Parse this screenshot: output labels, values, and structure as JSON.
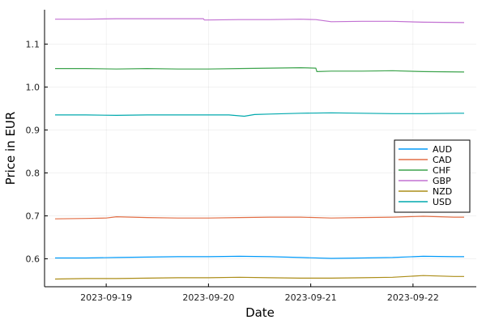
{
  "chart_data": {
    "type": "line",
    "title": "",
    "xlabel": "Date",
    "ylabel": "Price in EUR",
    "x_ticks": [
      "2023-09-19",
      "2023-09-20",
      "2023-09-21",
      "2023-09-22"
    ],
    "x_range": [
      0,
      4
    ],
    "x_tick_positions": [
      0.5,
      1.5,
      2.5,
      3.5
    ],
    "ylim": [
      0.535,
      1.18
    ],
    "y_ticks": [
      0.6,
      0.7,
      0.8,
      0.9,
      1.0,
      1.1
    ],
    "y_tick_labels": [
      "0.6",
      "0.7",
      "0.8",
      "0.9",
      "1.0",
      "1.1"
    ],
    "grid": true,
    "legend_position": "right",
    "series": [
      {
        "name": "AUD",
        "color": "#009af9",
        "points": [
          [
            0.0,
            0.602
          ],
          [
            0.3,
            0.602
          ],
          [
            0.6,
            0.603
          ],
          [
            0.9,
            0.604
          ],
          [
            1.2,
            0.605
          ],
          [
            1.5,
            0.605
          ],
          [
            1.8,
            0.606
          ],
          [
            2.1,
            0.605
          ],
          [
            2.4,
            0.603
          ],
          [
            2.7,
            0.601
          ],
          [
            3.0,
            0.602
          ],
          [
            3.3,
            0.603
          ],
          [
            3.6,
            0.606
          ],
          [
            3.9,
            0.605
          ],
          [
            4.0,
            0.605
          ]
        ]
      },
      {
        "name": "CAD",
        "color": "#e26f46",
        "points": [
          [
            0.0,
            0.693
          ],
          [
            0.3,
            0.694
          ],
          [
            0.5,
            0.695
          ],
          [
            0.6,
            0.698
          ],
          [
            0.9,
            0.696
          ],
          [
            1.2,
            0.695
          ],
          [
            1.5,
            0.695
          ],
          [
            1.8,
            0.696
          ],
          [
            2.1,
            0.697
          ],
          [
            2.4,
            0.697
          ],
          [
            2.7,
            0.695
          ],
          [
            3.0,
            0.696
          ],
          [
            3.3,
            0.697
          ],
          [
            3.6,
            0.699
          ],
          [
            3.9,
            0.697
          ],
          [
            4.0,
            0.697
          ]
        ]
      },
      {
        "name": "CHF",
        "color": "#3da44d",
        "points": [
          [
            0.0,
            1.043
          ],
          [
            0.3,
            1.043
          ],
          [
            0.6,
            1.042
          ],
          [
            0.9,
            1.043
          ],
          [
            1.2,
            1.042
          ],
          [
            1.5,
            1.042
          ],
          [
            1.8,
            1.043
          ],
          [
            2.1,
            1.044
          ],
          [
            2.4,
            1.045
          ],
          [
            2.55,
            1.044
          ],
          [
            2.56,
            1.036
          ],
          [
            2.7,
            1.037
          ],
          [
            3.0,
            1.037
          ],
          [
            3.3,
            1.038
          ],
          [
            3.6,
            1.036
          ],
          [
            4.0,
            1.035
          ]
        ]
      },
      {
        "name": "GBP",
        "color": "#c271d2",
        "points": [
          [
            0.0,
            1.158
          ],
          [
            0.3,
            1.158
          ],
          [
            0.6,
            1.159
          ],
          [
            0.9,
            1.159
          ],
          [
            1.2,
            1.159
          ],
          [
            1.45,
            1.159
          ],
          [
            1.46,
            1.156
          ],
          [
            1.8,
            1.157
          ],
          [
            2.1,
            1.157
          ],
          [
            2.4,
            1.158
          ],
          [
            2.55,
            1.157
          ],
          [
            2.7,
            1.152
          ],
          [
            3.0,
            1.153
          ],
          [
            3.3,
            1.153
          ],
          [
            3.6,
            1.151
          ],
          [
            4.0,
            1.15
          ]
        ]
      },
      {
        "name": "NZD",
        "color": "#ac8d18",
        "points": [
          [
            0.0,
            0.553
          ],
          [
            0.3,
            0.554
          ],
          [
            0.6,
            0.554
          ],
          [
            0.9,
            0.555
          ],
          [
            1.2,
            0.556
          ],
          [
            1.5,
            0.556
          ],
          [
            1.8,
            0.557
          ],
          [
            2.1,
            0.556
          ],
          [
            2.4,
            0.555
          ],
          [
            2.7,
            0.555
          ],
          [
            3.0,
            0.556
          ],
          [
            3.3,
            0.557
          ],
          [
            3.6,
            0.561
          ],
          [
            3.9,
            0.559
          ],
          [
            4.0,
            0.559
          ]
        ]
      },
      {
        "name": "USD",
        "color": "#00a9ad",
        "points": [
          [
            0.0,
            0.935
          ],
          [
            0.3,
            0.935
          ],
          [
            0.6,
            0.934
          ],
          [
            0.9,
            0.935
          ],
          [
            1.2,
            0.935
          ],
          [
            1.5,
            0.935
          ],
          [
            1.7,
            0.935
          ],
          [
            1.85,
            0.932
          ],
          [
            1.95,
            0.936
          ],
          [
            2.1,
            0.937
          ],
          [
            2.4,
            0.939
          ],
          [
            2.7,
            0.94
          ],
          [
            3.0,
            0.939
          ],
          [
            3.3,
            0.938
          ],
          [
            3.6,
            0.938
          ],
          [
            3.9,
            0.939
          ],
          [
            4.0,
            0.939
          ]
        ]
      }
    ]
  }
}
